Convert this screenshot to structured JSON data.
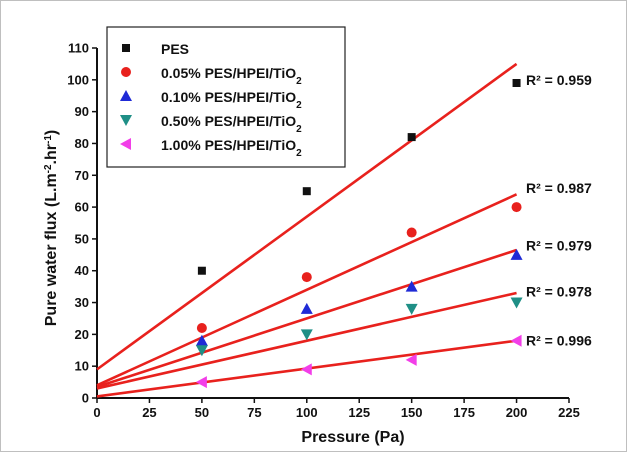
{
  "chart_data": {
    "type": "scatter",
    "xlabel": "Pressure (Pa)",
    "ylabel_parts": [
      "Pure water flux (L.m",
      "-2",
      ".hr",
      "-1",
      ")"
    ],
    "xlim": [
      0,
      225
    ],
    "ylim": [
      0,
      110
    ],
    "xticks": [
      0,
      25,
      50,
      75,
      100,
      125,
      150,
      175,
      200,
      225
    ],
    "yticks": [
      0,
      10,
      20,
      30,
      40,
      50,
      60,
      70,
      80,
      90,
      100,
      110
    ],
    "grid": false,
    "legend_position": "top-left",
    "x": [
      50,
      100,
      150,
      200
    ],
    "series": [
      {
        "name": "PES",
        "name_parts": [
          "PES"
        ],
        "marker": "square",
        "color": "#111111",
        "values": [
          40,
          65,
          82,
          99
        ],
        "fit": {
          "x0": 0,
          "y0": 9,
          "x1": 200,
          "y1": 105
        },
        "r2_label": "R² = 0.959",
        "r2_at": 100
      },
      {
        "name": "0.05% PES/HPEI/TiO2",
        "name_parts": [
          "0.05% PES/HPEI/TiO",
          "2"
        ],
        "marker": "circle",
        "color": "#e8211d",
        "values": [
          22,
          38,
          52,
          60
        ],
        "fit": {
          "x0": 0,
          "y0": 4,
          "x1": 200,
          "y1": 64
        },
        "r2_label": "R² = 0.987",
        "r2_at": 66
      },
      {
        "name": "0.10% PES/HPEI/TiO2",
        "name_parts": [
          "0.10% PES/HPEI/TiO",
          "2"
        ],
        "marker": "triangle-up",
        "color": "#1f2ad6",
        "values": [
          18,
          28,
          35,
          45
        ],
        "fit": {
          "x0": 0,
          "y0": 3.5,
          "x1": 200,
          "y1": 46.5
        },
        "r2_label": "R² = 0.979",
        "r2_at": 48
      },
      {
        "name": "0.50% PES/HPEI/TiO2",
        "name_parts": [
          "0.50% PES/HPEI/TiO",
          "2"
        ],
        "marker": "triangle-down",
        "color": "#1f8f86",
        "values": [
          15,
          20,
          28,
          30
        ],
        "fit": {
          "x0": 0,
          "y0": 3,
          "x1": 200,
          "y1": 33
        },
        "r2_label": "R² = 0.978",
        "r2_at": 33.5
      },
      {
        "name": "1.00% PES/HPEI/TiO2",
        "name_parts": [
          "1.00% PES/HPEI/TiO",
          "2"
        ],
        "marker": "triangle-left",
        "color": "#f23ee8",
        "values": [
          5,
          9,
          12,
          18
        ],
        "fit": {
          "x0": 0,
          "y0": 0.5,
          "x1": 200,
          "y1": 18
        },
        "r2_label": "R² = 0.996",
        "r2_at": 18
      }
    ],
    "fit_line_color": "#e8211d"
  }
}
